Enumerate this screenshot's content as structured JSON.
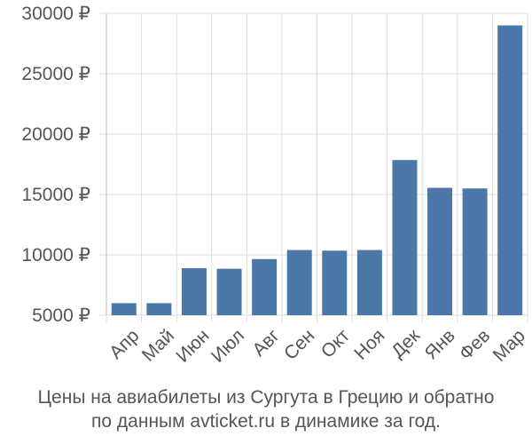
{
  "colors": {
    "bar": "#4c78a8",
    "grid": "#dddddd",
    "axis": "#bbbbbb",
    "text": "#555555"
  },
  "chart_data": {
    "type": "bar",
    "categories": [
      "Апр",
      "Май",
      "Июн",
      "Июл",
      "Авг",
      "Сен",
      "Окт",
      "Ноя",
      "Дек",
      "Янв",
      "Фев",
      "Мар"
    ],
    "values": [
      6000,
      6000,
      8900,
      8850,
      9650,
      10400,
      10350,
      10400,
      17850,
      15550,
      15500,
      29000
    ],
    "ylim": [
      5000,
      30000
    ],
    "yticks": [
      5000,
      10000,
      15000,
      20000,
      25000,
      30000
    ],
    "ytick_labels": [
      "5000 ₽",
      "10000 ₽",
      "15000 ₽",
      "20000 ₽",
      "25000 ₽",
      "30000 ₽"
    ],
    "grid": true,
    "caption_lines": [
      "Цены на авиабилеты из Сургута в Грецию и обратно",
      "по данным avticket.ru в динамике за год."
    ]
  }
}
